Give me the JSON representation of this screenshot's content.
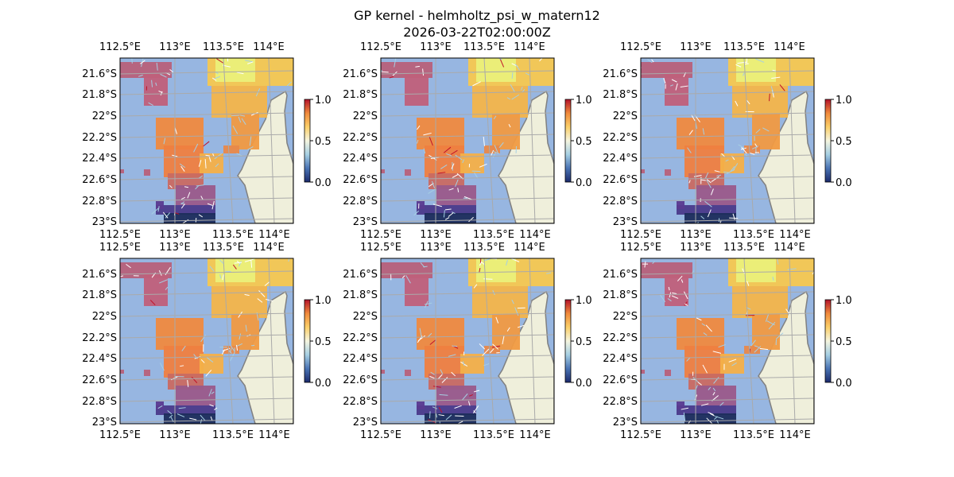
{
  "title": "GP kernel - helmholtz_psi_w_matern12",
  "subtitle": "2026-03-22T02:00:00Z",
  "chart_data": {
    "type": "heatmap",
    "panel_count": 6,
    "layout": "2 rows x 3 columns",
    "map": {
      "lon_ticks_top": [
        "112.5°E",
        "113°E",
        "113.5°E",
        "114°E"
      ],
      "lon_ticks_bottom": [
        "112.5°E",
        "113°E",
        "113.5°E",
        "114°E"
      ],
      "lat_ticks": [
        "21.6°S",
        "21.8°S",
        "22°S",
        "22.2°S",
        "22.4°S",
        "22.6°S",
        "22.8°S",
        "23°S"
      ],
      "gridlines": true,
      "ocean_color": "#97b6e1",
      "land_color": "#efefdb",
      "coastline_color": "#808080",
      "overlay": "quiver arrows on gridded field"
    },
    "colorbar": {
      "ticks": [
        "0.0",
        "0.5",
        "1.0"
      ],
      "range": [
        0,
        1
      ],
      "colormap": [
        "#1b2a6b",
        "#4a74b4",
        "#a6cfe3",
        "#f5f5e0",
        "#fbd06a",
        "#f08a3c",
        "#b4122a"
      ]
    }
  }
}
